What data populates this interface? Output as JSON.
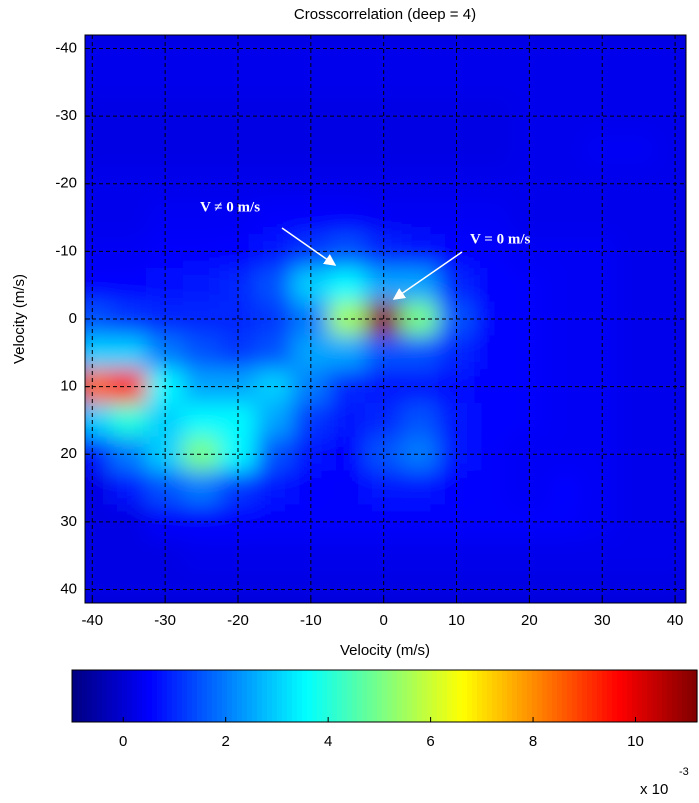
{
  "chart_data": {
    "type": "heatmap",
    "title": "Crosscorrelation (deep = 4)",
    "x_label": "Velocity (m/s)",
    "y_label": "Velocity (m/s)",
    "xlim": [
      -41,
      41.5
    ],
    "ylim": [
      -42,
      42
    ],
    "y_inverted": true,
    "xticks": [
      -40,
      -30,
      -20,
      -10,
      0,
      10,
      20,
      30,
      40
    ],
    "yticks": [
      -40,
      -30,
      -20,
      -10,
      0,
      10,
      20,
      30,
      40
    ],
    "grid": true,
    "colormap": "jet",
    "clim": [
      -1,
      11.2
    ],
    "colorbar_ticks": [
      0,
      2,
      4,
      6,
      8,
      10
    ],
    "colorbar_multiplier": {
      "base": "x 10",
      "exponent": "-3"
    },
    "annotations": [
      {
        "text": "V ≠ 0 m/s"
      },
      {
        "text": "V = 0 m/s"
      }
    ],
    "x": [
      -40,
      -35,
      -30,
      -25,
      -20,
      -15,
      -10,
      -5,
      0,
      5,
      10,
      15,
      20,
      25,
      30,
      35,
      40
    ],
    "y": [
      -40,
      -35,
      -30,
      -25,
      -20,
      -15,
      -10,
      -5,
      0,
      5,
      10,
      15,
      20,
      25,
      30,
      35,
      40
    ],
    "z": [
      [
        0.3,
        0.3,
        0.3,
        0.3,
        0.3,
        0.3,
        0.3,
        0.3,
        0.3,
        0.3,
        0.3,
        0.3,
        0.3,
        0.3,
        0.3,
        0.3,
        0.3
      ],
      [
        0.3,
        0.3,
        0.3,
        0.3,
        0.3,
        0.3,
        0.3,
        0.3,
        0.3,
        0.3,
        0.3,
        0.3,
        0.3,
        0.3,
        0.3,
        0.3,
        0.3
      ],
      [
        0.2,
        0.2,
        0.2,
        0.2,
        0.2,
        0.2,
        0.2,
        0.2,
        0.2,
        0.2,
        0.2,
        0.2,
        0.3,
        0.3,
        0.3,
        0.3,
        0.3
      ],
      [
        0.2,
        0.2,
        0.2,
        0.2,
        0.2,
        0.2,
        0.2,
        0.2,
        0.2,
        0.2,
        0.2,
        0.2,
        0.3,
        0.3,
        0.4,
        0.4,
        0.3
      ],
      [
        0.3,
        0.3,
        0.3,
        0.3,
        0.3,
        0.3,
        0.3,
        0.3,
        0.3,
        0.3,
        0.3,
        0.3,
        0.3,
        0.3,
        0.3,
        0.3,
        0.3
      ],
      [
        0.3,
        0.3,
        0.4,
        0.4,
        0.4,
        0.5,
        0.5,
        0.5,
        0.4,
        0.4,
        0.4,
        0.4,
        0.3,
        0.3,
        0.3,
        0.3,
        0.3
      ],
      [
        0.4,
        0.4,
        0.5,
        0.5,
        0.6,
        0.8,
        1.2,
        1.5,
        1,
        0.8,
        0.6,
        0.5,
        0.4,
        0.4,
        0.4,
        0.3,
        0.3
      ],
      [
        0.6,
        0.6,
        0.7,
        0.8,
        1,
        1.5,
        3,
        3.5,
        2.5,
        2.5,
        1,
        0.6,
        0.5,
        0.4,
        0.4,
        0.3,
        0.3
      ],
      [
        1.5,
        1.2,
        1,
        1,
        1,
        1.2,
        2,
        5.5,
        11,
        5,
        1.5,
        0.6,
        0.5,
        0.4,
        0.4,
        0.3,
        0.3
      ],
      [
        3,
        3,
        2,
        1.5,
        1.2,
        1.5,
        2.5,
        2.5,
        1.5,
        1.5,
        1,
        0.6,
        0.5,
        0.4,
        0.4,
        0.3,
        0.3
      ],
      [
        8.5,
        9.5,
        3.5,
        2.5,
        2.5,
        3,
        2,
        1,
        0.8,
        0.8,
        0.7,
        0.6,
        0.5,
        0.4,
        0.4,
        0.3,
        0.3
      ],
      [
        3,
        4,
        3,
        3.5,
        3.5,
        2.5,
        1.2,
        0.8,
        1,
        1.5,
        0.8,
        0.6,
        0.5,
        0.4,
        0.4,
        0.3,
        0.3
      ],
      [
        0.8,
        2,
        3,
        5,
        3.5,
        1.5,
        0.8,
        0.6,
        1.5,
        2,
        0.8,
        0.5,
        0.4,
        0.4,
        0.4,
        0.3,
        0.3
      ],
      [
        0.2,
        0.8,
        1.5,
        2,
        1.2,
        0.8,
        0.6,
        0.5,
        0.8,
        0.8,
        0.6,
        0.5,
        0.4,
        0.6,
        0.4,
        0.3,
        0.3
      ],
      [
        0.2,
        0.2,
        0.5,
        0.6,
        0.6,
        0.5,
        0.5,
        0.5,
        0.5,
        0.5,
        0.5,
        0.5,
        0.5,
        0.5,
        0.4,
        0.3,
        0.3
      ],
      [
        0.2,
        0.2,
        0.2,
        0.3,
        0.3,
        0.3,
        0.3,
        0.3,
        0.3,
        0.3,
        0.3,
        0.3,
        0.3,
        0.3,
        0.3,
        0.3,
        0.3
      ],
      [
        0.2,
        0.2,
        0.2,
        0.2,
        0.2,
        0.2,
        0.2,
        0.2,
        0.2,
        0.2,
        0.2,
        0.2,
        0.2,
        0.2,
        0.2,
        0.2,
        0.2
      ]
    ]
  }
}
